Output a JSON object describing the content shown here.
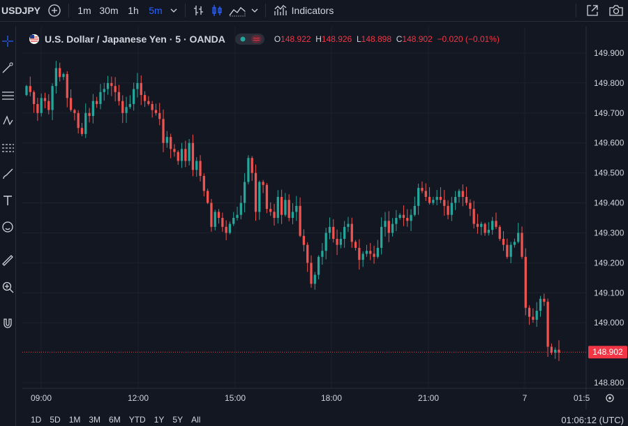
{
  "toolbar": {
    "symbol": "USDJPY",
    "intervals": [
      "1m",
      "30m",
      "1h",
      "5m"
    ],
    "active_interval": "5m",
    "indicators_label": "Indicators"
  },
  "legend": {
    "title": "U.S. Dollar / Japanese Yen · 5 · OANDA",
    "open_label": "O",
    "open": "148.922",
    "high_label": "H",
    "high": "148.926",
    "low_label": "L",
    "low": "148.898",
    "close_label": "C",
    "close": "148.902",
    "change": "−0.020 (−0.01%)"
  },
  "bottom": {
    "ranges": [
      "1D",
      "5D",
      "1M",
      "3M",
      "6M",
      "YTD",
      "1Y",
      "5Y",
      "All"
    ],
    "clock": "01:06:12 (UTC)"
  },
  "colors": {
    "up": "#26a69a",
    "down": "#ef5350",
    "background": "#131722",
    "grid": "#1e222d",
    "price_badge": "#f23645",
    "active_interval": "#2962ff"
  },
  "chart_data": {
    "type": "candlestick",
    "title": "U.S. Dollar / Japanese Yen · 5 · OANDA",
    "ylim": [
      148.78,
      149.94
    ],
    "y_ticks": [
      "149.900",
      "149.800",
      "149.700",
      "149.600",
      "149.500",
      "149.400",
      "149.300",
      "149.200",
      "149.100",
      "149.000",
      "148.800"
    ],
    "x_ticks": [
      "09:00",
      "12:00",
      "15:00",
      "18:00",
      "21:00",
      "7",
      "01:5"
    ],
    "last_price": "148.902",
    "closes": [
      149.79,
      149.77,
      149.73,
      149.7,
      149.75,
      149.74,
      149.71,
      149.79,
      149.85,
      149.82,
      149.83,
      149.75,
      149.71,
      149.7,
      149.65,
      149.63,
      149.7,
      149.69,
      149.74,
      149.73,
      149.77,
      149.78,
      149.8,
      149.79,
      149.77,
      149.74,
      149.7,
      149.72,
      149.73,
      149.78,
      149.8,
      149.76,
      149.74,
      149.73,
      149.71,
      149.7,
      149.68,
      149.6,
      149.62,
      149.58,
      149.57,
      149.54,
      149.58,
      149.54,
      149.6,
      149.51,
      149.54,
      149.49,
      149.44,
      149.4,
      149.32,
      149.37,
      149.35,
      149.32,
      149.3,
      149.33,
      149.35,
      149.36,
      149.4,
      149.47,
      149.55,
      149.5,
      149.37,
      149.47,
      149.46,
      149.38,
      149.37,
      149.35,
      149.42,
      149.36,
      149.41,
      149.35,
      149.37,
      149.39,
      149.29,
      149.26,
      149.2,
      149.13,
      149.16,
      149.22,
      149.24,
      149.3,
      149.32,
      149.28,
      149.26,
      149.28,
      149.32,
      149.33,
      149.27,
      149.25,
      149.21,
      149.23,
      149.24,
      149.23,
      149.22,
      149.25,
      149.32,
      149.34,
      149.3,
      149.33,
      149.35,
      149.36,
      149.35,
      149.34,
      149.36,
      149.39,
      149.45,
      149.44,
      149.42,
      149.4,
      149.41,
      149.42,
      149.41,
      149.39,
      149.36,
      149.4,
      149.42,
      149.44,
      149.42,
      149.4,
      149.38,
      149.33,
      149.32,
      149.33,
      149.3,
      149.31,
      149.34,
      149.32,
      149.28,
      149.26,
      149.22,
      149.26,
      149.27,
      149.3,
      149.22,
      149.05,
      149.02,
      149.01,
      149.04,
      149.08,
      149.07,
      148.92,
      148.9,
      148.91,
      148.9
    ]
  }
}
